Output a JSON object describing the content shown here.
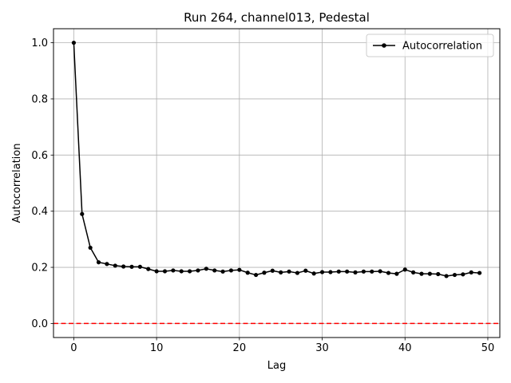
{
  "chart_data": {
    "type": "line",
    "title": "Run 264, channel013, Pedestal",
    "xlabel": "Lag",
    "ylabel": "Autocorrelation",
    "xlim": [
      -2.45,
      51.45
    ],
    "ylim": [
      -0.05,
      1.05
    ],
    "xticks": [
      0,
      10,
      20,
      30,
      40,
      50
    ],
    "yticks": [
      0.0,
      0.2,
      0.4,
      0.6,
      0.8,
      1.0
    ],
    "xtick_labels": [
      "0",
      "10",
      "20",
      "30",
      "40",
      "50"
    ],
    "ytick_labels": [
      "0.0",
      "0.2",
      "0.4",
      "0.6",
      "0.8",
      "1.0"
    ],
    "grid": true,
    "legend_position": "top-right",
    "series": [
      {
        "name": "Autocorrelation",
        "color": "#000000",
        "marker": "dot",
        "x": [
          0,
          1,
          2,
          3,
          4,
          5,
          6,
          7,
          8,
          9,
          10,
          11,
          12,
          13,
          14,
          15,
          16,
          17,
          18,
          19,
          20,
          21,
          22,
          23,
          24,
          25,
          26,
          27,
          28,
          29,
          30,
          31,
          32,
          33,
          34,
          35,
          36,
          37,
          38,
          39,
          40,
          41,
          42,
          43,
          44,
          45,
          46,
          47,
          48,
          49
        ],
        "y": [
          1.0,
          0.39,
          0.27,
          0.218,
          0.212,
          0.206,
          0.203,
          0.202,
          0.202,
          0.194,
          0.186,
          0.186,
          0.189,
          0.186,
          0.186,
          0.189,
          0.195,
          0.189,
          0.185,
          0.189,
          0.191,
          0.181,
          0.173,
          0.181,
          0.188,
          0.182,
          0.185,
          0.18,
          0.188,
          0.178,
          0.183,
          0.183,
          0.185,
          0.185,
          0.182,
          0.185,
          0.185,
          0.186,
          0.18,
          0.177,
          0.192,
          0.182,
          0.177,
          0.177,
          0.176,
          0.169,
          0.173,
          0.175,
          0.182,
          0.18
        ]
      }
    ],
    "reference_line": {
      "y": 0.0,
      "color": "#ff0000",
      "style": "dashed"
    }
  }
}
